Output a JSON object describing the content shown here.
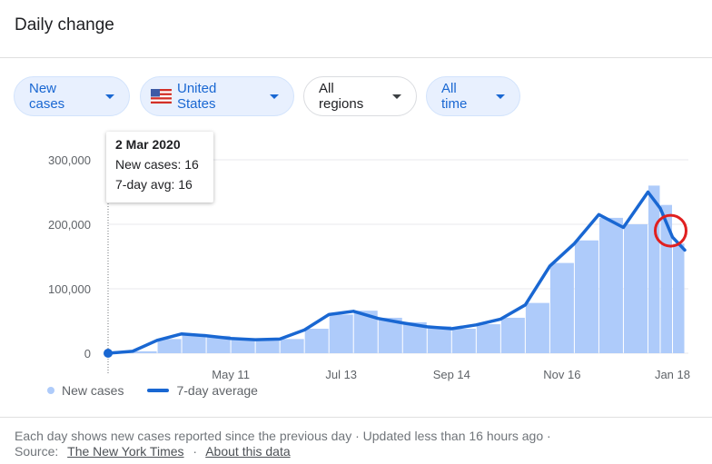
{
  "header": {
    "title": "Daily change"
  },
  "filters": [
    {
      "label": "New cases",
      "style": "blue"
    },
    {
      "label": "United States",
      "style": "blue",
      "flag": "us-flag-icon"
    },
    {
      "label": "All regions",
      "style": "plain"
    },
    {
      "label": "All time",
      "style": "blue"
    }
  ],
  "tooltip": {
    "date": "2 Mar 2020",
    "new_cases": "New cases: 16",
    "avg": "7-day avg: 16"
  },
  "legend": {
    "bars": "New cases",
    "line": "7-day average"
  },
  "footer": {
    "line1": "Each day shows new cases reported since the previous day · Updated less than 16 hours ago  ·",
    "source_prefix": "Source:",
    "source_link": "The New York Times",
    "separator": "·",
    "about_link": "About this data"
  },
  "colors": {
    "bar": "#aecbfa",
    "line": "#1967d2",
    "annotation": "#e02020"
  },
  "chart_data": {
    "type": "bar",
    "title": "",
    "x_ticks": [
      "May 11",
      "Jul 13",
      "Sep 14",
      "Nov 16",
      "Jan 18"
    ],
    "y_ticks": [
      "0",
      "100,000",
      "200,000",
      "300,000"
    ],
    "ylim": [
      0,
      300000
    ],
    "grid": true,
    "x": [
      "2020-03-02",
      "2020-03-16",
      "2020-03-30",
      "2020-04-13",
      "2020-04-27",
      "2020-05-11",
      "2020-05-25",
      "2020-06-08",
      "2020-06-22",
      "2020-07-06",
      "2020-07-20",
      "2020-08-03",
      "2020-08-17",
      "2020-08-31",
      "2020-09-14",
      "2020-09-28",
      "2020-10-12",
      "2020-10-26",
      "2020-11-09",
      "2020-11-23",
      "2020-12-07",
      "2020-12-21",
      "2021-01-04",
      "2021-01-11",
      "2021-01-18",
      "2021-01-25"
    ],
    "series": [
      {
        "name": "New cases",
        "kind": "bar",
        "values": [
          16,
          3000,
          22000,
          30000,
          27000,
          23000,
          21000,
          22000,
          38000,
          60000,
          66000,
          55000,
          48000,
          42000,
          38000,
          45000,
          55000,
          78000,
          140000,
          175000,
          210000,
          200000,
          260000,
          230000,
          170000,
          150000
        ]
      },
      {
        "name": "7-day average",
        "kind": "line",
        "values": [
          16,
          3000,
          20000,
          30000,
          27000,
          23000,
          21000,
          22000,
          36000,
          60000,
          65000,
          54000,
          47000,
          41000,
          38000,
          44000,
          53000,
          75000,
          135000,
          170000,
          215000,
          195000,
          250000,
          225000,
          180000,
          160000
        ]
      }
    ],
    "start_marker": {
      "date": "2 Mar 2020",
      "value": 16
    }
  }
}
